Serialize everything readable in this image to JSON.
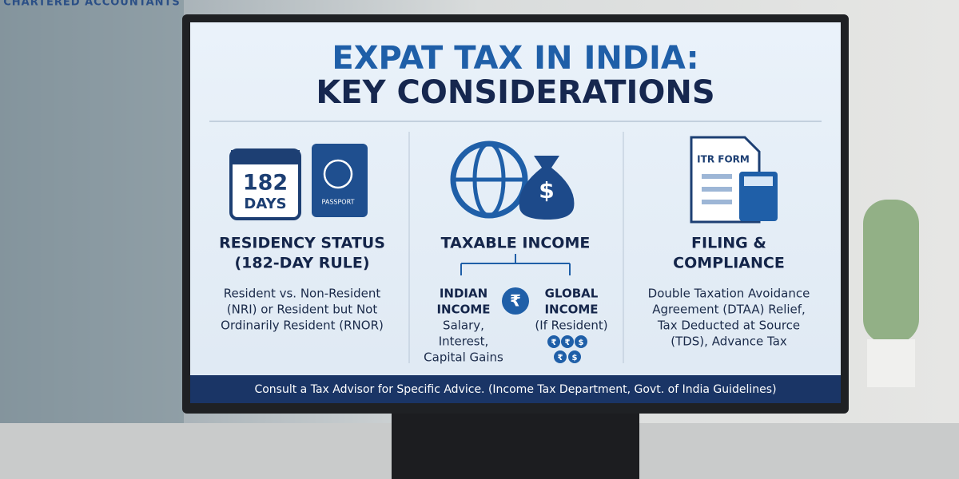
{
  "watermark": "CHARTERED ACCOUNTANTS",
  "header": {
    "title_line1": "EXPAT TAX IN INDIA:",
    "title_line2": "KEY CONSIDERATIONS"
  },
  "columns": [
    {
      "icons": {
        "calendar_number": "182",
        "calendar_unit": "DAYS",
        "passport": "PASSPORT"
      },
      "heading_lines": [
        "RESIDENCY STATUS",
        "(182-DAY RULE)"
      ],
      "body_lines": [
        "Resident vs. Non-Resident",
        "(NRI) or Resident but Not",
        "Ordinarily Resident (RNOR)"
      ]
    },
    {
      "icons": {
        "money_bag": "$",
        "exchange": "₹",
        "coins": [
          "₹",
          "₹",
          "$",
          "₹",
          "$"
        ]
      },
      "heading_lines": [
        "TAXABLE INCOME"
      ],
      "branches": [
        {
          "heading_lines": [
            "INDIAN",
            "INCOME"
          ],
          "detail_lines": [
            "Salary,",
            "Interest,",
            "Capital Gains"
          ]
        },
        {
          "heading_lines": [
            "GLOBAL",
            "INCOME"
          ],
          "detail_lines": [
            "(If Resident)"
          ]
        }
      ]
    },
    {
      "icons": {
        "form": "ITR FORM"
      },
      "heading_lines": [
        "FILING &",
        "COMPLIANCE"
      ],
      "body_lines": [
        "Double Taxation Avoidance",
        "Agreement (DTAA) Relief,",
        "Tax Deducted at Source",
        "(TDS), Advance Tax"
      ]
    }
  ],
  "footer": "Consult a Tax Advisor for Specific Advice. (Income Tax Department, Govt. of India Guidelines)"
}
